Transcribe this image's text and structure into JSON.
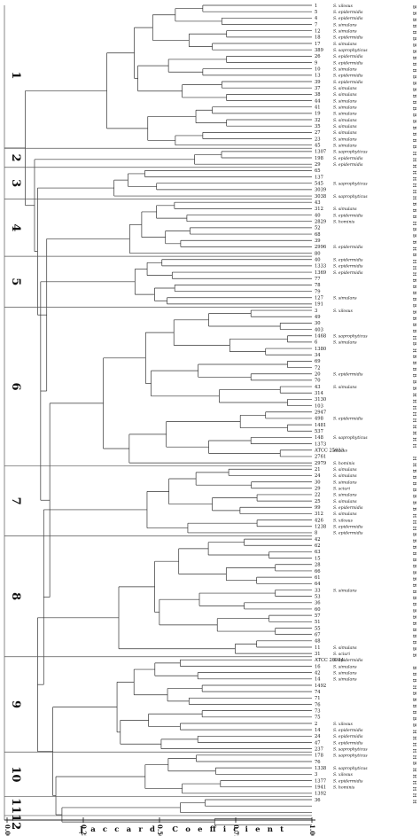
{
  "axis": {
    "ticks": [
      "0.00",
      "0.25",
      "0.50",
      "0.75",
      "1.00"
    ],
    "title": "Jaccard Coefficient"
  },
  "clusters": [
    "1",
    "2",
    "3",
    "4",
    "5",
    "6",
    "7",
    "8",
    "9",
    "10",
    "11",
    "12"
  ],
  "leaves": [
    {
      "id": "1",
      "sp": "S. xilosus",
      "o": "B"
    },
    {
      "id": "5",
      "sp": "S. epidermidis",
      "o": "B"
    },
    {
      "id": "4",
      "sp": "S. epidermidis",
      "o": "B"
    },
    {
      "id": "7",
      "sp": "S. simulans",
      "o": "B"
    },
    {
      "id": "12",
      "sp": "S. simulans",
      "o": "B"
    },
    {
      "id": "18",
      "sp": "S. epidermidis",
      "o": "B"
    },
    {
      "id": "17",
      "sp": "S. simulans",
      "o": "B"
    },
    {
      "id": "389",
      "sp": "S. saprophyticus",
      "o": "B"
    },
    {
      "id": "26",
      "sp": "S. epidermidis",
      "o": "B"
    },
    {
      "id": "9",
      "sp": "S. epidermidis",
      "o": "B"
    },
    {
      "id": "10",
      "sp": "S. simulans",
      "o": "B"
    },
    {
      "id": "13",
      "sp": "S. epidermidis",
      "o": "B"
    },
    {
      "id": "39",
      "sp": "S. epidermidis",
      "o": "B"
    },
    {
      "id": "37",
      "sp": "S. simulans",
      "o": "B"
    },
    {
      "id": "38",
      "sp": "S. simulans",
      "o": "B"
    },
    {
      "id": "44",
      "sp": "S. simulans",
      "o": "B"
    },
    {
      "id": "41",
      "sp": "S. simulans",
      "o": "B"
    },
    {
      "id": "19",
      "sp": "S. simulans",
      "o": "B"
    },
    {
      "id": "32",
      "sp": "S. simulans",
      "o": "B"
    },
    {
      "id": "35",
      "sp": "S. simulans",
      "o": "B"
    },
    {
      "id": "27",
      "sp": "S. simulans",
      "o": "B"
    },
    {
      "id": "23",
      "sp": "S. simulans",
      "o": "B"
    },
    {
      "id": "45",
      "sp": "S. simulans",
      "o": "B"
    },
    {
      "id": "1307",
      "sp": "S. saprophyticus",
      "o": "H"
    },
    {
      "id": "198",
      "sp": "S. epidermidis",
      "o": "H"
    },
    {
      "id": "29",
      "sp": "S. epidermidis",
      "o": "H"
    },
    {
      "id": "65",
      "sp": "",
      "o": "H"
    },
    {
      "id": "137",
      "sp": "",
      "o": "H"
    },
    {
      "id": "545",
      "sp": "S. saprophyticus",
      "o": "H"
    },
    {
      "id": "3039",
      "sp": "",
      "o": "H"
    },
    {
      "id": "3038",
      "sp": "S. saprophyticus",
      "o": "H"
    },
    {
      "id": "43",
      "sp": "",
      "o": "B"
    },
    {
      "id": "312",
      "sp": "S. simulans",
      "o": "B"
    },
    {
      "id": "40",
      "sp": "S. epidermidis",
      "o": "B"
    },
    {
      "id": "2829",
      "sp": "S. hominis",
      "o": "H"
    },
    {
      "id": "52",
      "sp": "",
      "o": "B"
    },
    {
      "id": "68",
      "sp": "",
      "o": "B"
    },
    {
      "id": "39",
      "sp": "",
      "o": "B"
    },
    {
      "id": "2996",
      "sp": "S. epidermidis",
      "o": "H"
    },
    {
      "id": "80",
      "sp": "",
      "o": "B"
    },
    {
      "id": "40",
      "sp": "S. epidermidis",
      "o": "H"
    },
    {
      "id": "1333",
      "sp": "S. epidermidis",
      "o": "H"
    },
    {
      "id": "1369",
      "sp": "S. epidermidis",
      "o": "H"
    },
    {
      "id": "77",
      "sp": "",
      "o": "B"
    },
    {
      "id": "78",
      "sp": "",
      "o": "B"
    },
    {
      "id": "79",
      "sp": "",
      "o": "B"
    },
    {
      "id": "127",
      "sp": "S. simulans",
      "o": "B"
    },
    {
      "id": "191",
      "sp": "",
      "o": "B"
    },
    {
      "id": "3",
      "sp": "S. xilosus",
      "o": "B"
    },
    {
      "id": "49",
      "sp": "",
      "o": "B"
    },
    {
      "id": "30",
      "sp": "",
      "o": "B"
    },
    {
      "id": "403",
      "sp": "",
      "o": "B"
    },
    {
      "id": "1468",
      "sp": "S. saprophyticus",
      "o": "H"
    },
    {
      "id": "6",
      "sp": "S. simulans",
      "o": "B"
    },
    {
      "id": "1380",
      "sp": "",
      "o": "H"
    },
    {
      "id": "34",
      "sp": "",
      "o": "B"
    },
    {
      "id": "69",
      "sp": "",
      "o": "B"
    },
    {
      "id": "72",
      "sp": "",
      "o": "B"
    },
    {
      "id": "20",
      "sp": "S. epidermidis",
      "o": "B"
    },
    {
      "id": "70",
      "sp": "",
      "o": "B"
    },
    {
      "id": "43",
      "sp": "S. simulans",
      "o": "B"
    },
    {
      "id": "314",
      "sp": "",
      "o": "H"
    },
    {
      "id": "3130",
      "sp": "",
      "o": "H"
    },
    {
      "id": "103",
      "sp": "",
      "o": "H"
    },
    {
      "id": "2947",
      "sp": "",
      "o": "H"
    },
    {
      "id": "498",
      "sp": "S. epidermidis",
      "o": "H"
    },
    {
      "id": "1481",
      "sp": "",
      "o": "H"
    },
    {
      "id": "537",
      "sp": "",
      "o": "H"
    },
    {
      "id": "148",
      "sp": "S. saprophyticus",
      "o": "H"
    },
    {
      "id": "1373",
      "sp": "",
      "o": "H"
    },
    {
      "id": "ATCC 25923",
      "sp": "aureus",
      "o": ""
    },
    {
      "id": "2761",
      "sp": "",
      "o": "H"
    },
    {
      "id": "2979",
      "sp": "S. hominis",
      "o": "H"
    },
    {
      "id": "21",
      "sp": "S. simulans",
      "o": "B"
    },
    {
      "id": "24",
      "sp": "S. simulans",
      "o": "B"
    },
    {
      "id": "30",
      "sp": "S. simulans",
      "o": "B"
    },
    {
      "id": "29",
      "sp": "S. sciuri",
      "o": "B"
    },
    {
      "id": "22",
      "sp": "S. simulans",
      "o": "B"
    },
    {
      "id": "25",
      "sp": "S. simulans",
      "o": "B"
    },
    {
      "id": "99",
      "sp": "S. epidermidis",
      "o": "B"
    },
    {
      "id": "312",
      "sp": "S. simulans",
      "o": "H"
    },
    {
      "id": "426",
      "sp": "S. xilosus",
      "o": "H"
    },
    {
      "id": "1238",
      "sp": "S. epidermidis",
      "o": "H"
    },
    {
      "id": "8",
      "sp": "S. epidermidis",
      "o": "B"
    },
    {
      "id": "42",
      "sp": "",
      "o": "B"
    },
    {
      "id": "62",
      "sp": "",
      "o": "B"
    },
    {
      "id": "63",
      "sp": "",
      "o": "B"
    },
    {
      "id": "15",
      "sp": "",
      "o": "B"
    },
    {
      "id": "28",
      "sp": "",
      "o": "B"
    },
    {
      "id": "66",
      "sp": "",
      "o": "B"
    },
    {
      "id": "61",
      "sp": "",
      "o": "B"
    },
    {
      "id": "64",
      "sp": "",
      "o": "B"
    },
    {
      "id": "33",
      "sp": "S. simulans",
      "o": "B"
    },
    {
      "id": "53",
      "sp": "",
      "o": "B"
    },
    {
      "id": "36",
      "sp": "",
      "o": "B"
    },
    {
      "id": "60",
      "sp": "",
      "o": "B"
    },
    {
      "id": "57",
      "sp": "",
      "o": "B"
    },
    {
      "id": "51",
      "sp": "",
      "o": "B"
    },
    {
      "id": "55",
      "sp": "",
      "o": "B"
    },
    {
      "id": "67",
      "sp": "",
      "o": "B"
    },
    {
      "id": "48",
      "sp": "",
      "o": "B"
    },
    {
      "id": "11",
      "sp": "S. simulans",
      "o": "B"
    },
    {
      "id": "31",
      "sp": "S. sciuri",
      "o": "B"
    },
    {
      "id": "ATCC 20984",
      "sp": "S. epidermidis",
      "o": ""
    },
    {
      "id": "16",
      "sp": "S. simulans",
      "o": "B"
    },
    {
      "id": "42",
      "sp": "S. simulans",
      "o": "B"
    },
    {
      "id": "14",
      "sp": "S. simulans",
      "o": "B"
    },
    {
      "id": "1492",
      "sp": "",
      "o": "H"
    },
    {
      "id": "74",
      "sp": "",
      "o": "B"
    },
    {
      "id": "71",
      "sp": "",
      "o": "B"
    },
    {
      "id": "76",
      "sp": "",
      "o": "B"
    },
    {
      "id": "73",
      "sp": "",
      "o": "B"
    },
    {
      "id": "75",
      "sp": "",
      "o": "B"
    },
    {
      "id": "2",
      "sp": "S. xilosus",
      "o": "B"
    },
    {
      "id": "14",
      "sp": "S. epidermidis",
      "o": "H"
    },
    {
      "id": "24",
      "sp": "S. epidermidis",
      "o": "H"
    },
    {
      "id": "47",
      "sp": "S. epidermidis",
      "o": "H"
    },
    {
      "id": "237",
      "sp": "S. saprophyticus",
      "o": "H"
    },
    {
      "id": "178",
      "sp": "S. saprophyticus",
      "o": "H"
    },
    {
      "id": "76",
      "sp": "",
      "o": "B"
    },
    {
      "id": "1338",
      "sp": "S. saprophyticus",
      "o": "H"
    },
    {
      "id": "3",
      "sp": "S. xilosus",
      "o": "H"
    },
    {
      "id": "1377",
      "sp": "S. epidermidis",
      "o": "H"
    },
    {
      "id": "1941",
      "sp": "S. hominis",
      "o": "H"
    },
    {
      "id": "1392",
      "sp": "",
      "o": "H"
    },
    {
      "id": "36",
      "sp": "",
      "o": "H"
    }
  ]
}
